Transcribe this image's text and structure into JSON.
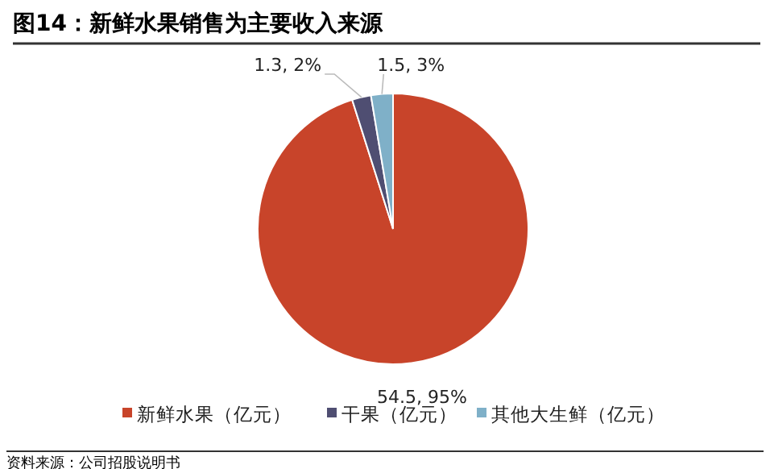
{
  "chart_data": {
    "type": "pie",
    "title": "图14：新鲜水果销售为主要收入来源",
    "categories": [
      "新鲜水果（亿元）",
      "干果（亿元）",
      "其他大生鲜（亿元）"
    ],
    "values": [
      54.5,
      1.3,
      1.5
    ],
    "colors": [
      "#c8442a",
      "#4f4e72",
      "#7fb0c8"
    ],
    "value_labels": [
      "54.5, 95%",
      "1.3, 2%",
      "1.5, 3%"
    ],
    "legend": "bottom",
    "annotations": [
      "资料来源：公司招股说明书"
    ]
  }
}
